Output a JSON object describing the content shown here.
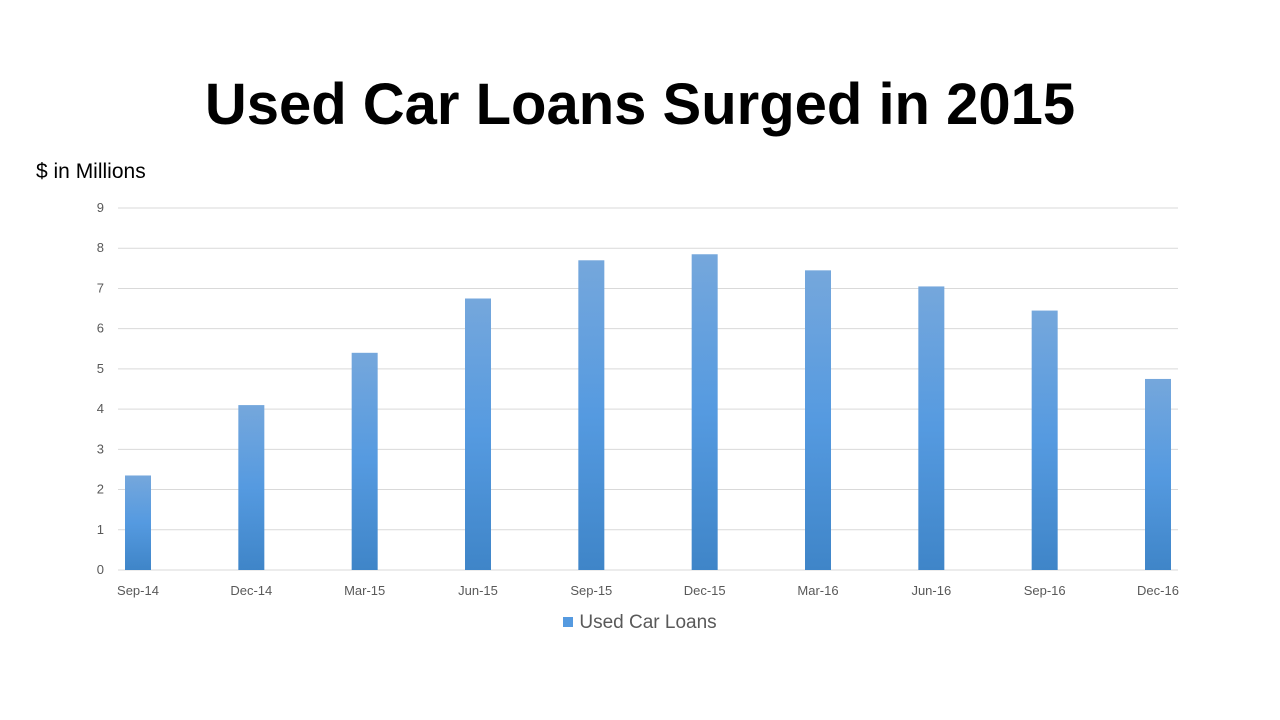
{
  "colors": {
    "bar_top": "#75a7dc",
    "bar_mid": "#559ae0",
    "bar_bottom": "#3f85c8",
    "grid": "#d9d9d9",
    "tick_text": "#595959"
  },
  "chart_data": {
    "type": "bar",
    "title": "Used Car Loans Surged in 2015",
    "ylabel": "$ in Millions",
    "xlabel": "",
    "categories": [
      "Sep-14",
      "Dec-14",
      "Mar-15",
      "Jun-15",
      "Sep-15",
      "Dec-15",
      "Mar-16",
      "Jun-16",
      "Sep-16",
      "Dec-16"
    ],
    "series": [
      {
        "name": "Used Car Loans",
        "values": [
          2.35,
          4.1,
          5.4,
          6.75,
          7.7,
          7.85,
          7.45,
          7.05,
          6.45,
          4.75
        ]
      }
    ],
    "ylim": [
      0,
      9
    ],
    "yticks": [
      "0",
      "1",
      "2",
      "3",
      "4",
      "5",
      "6",
      "7",
      "8",
      "9"
    ],
    "grid": true,
    "legend_position": "bottom"
  }
}
